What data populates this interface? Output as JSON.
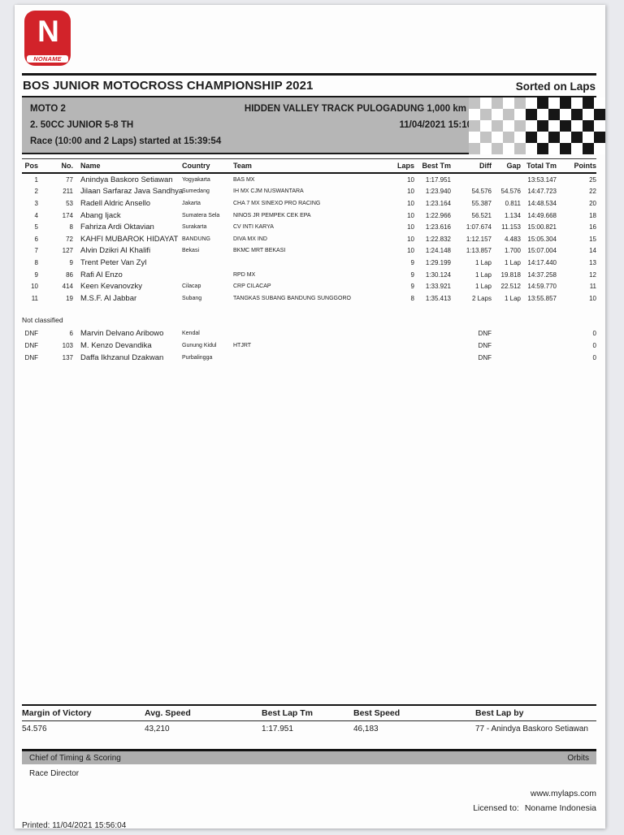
{
  "page": {
    "logo": {
      "letter": "N",
      "brand": "NONAME",
      "red": "#d2232a"
    },
    "header": {
      "title": "BOS JUNIOR MOTOCROSS CHAMPIONSHIP 2021",
      "sorted_on": "Sorted on Laps"
    },
    "event": {
      "moto": "MOTO 2",
      "track": "HIDDEN VALLEY TRACK PULOGADUNG 1,000 km",
      "class": "2. 50CC JUNIOR 5-8 TH",
      "datetime": "11/04/2021 15:10",
      "race_info": "Race (10:00 and 2 Laps) started at 15:39:54"
    },
    "flag": {
      "rows": 5,
      "cols": 12,
      "gray_cols": 5,
      "gray": "#c3c3c3",
      "black": "#161616",
      "white": "#ffffff"
    },
    "results": {
      "columns": [
        "Pos",
        "No.",
        "Name",
        "Country",
        "Team",
        "Laps",
        "Best Tm",
        "Diff",
        "Gap",
        "Total Tm",
        "Points"
      ],
      "rows": [
        {
          "pos": "1",
          "no": "77",
          "name": "Anindya Baskoro Setiawan",
          "country": "Yogyakarta",
          "team": "BAS MX",
          "laps": "10",
          "best": "1:17.951",
          "diff": "",
          "gap": "",
          "total": "13:53.147",
          "points": "25"
        },
        {
          "pos": "2",
          "no": "211",
          "name": "Jilaan Sarfaraz Java Sandhya",
          "country": "Sumedang",
          "team": "IH MX CJM NUSWANTARA",
          "laps": "10",
          "best": "1:23.940",
          "diff": "54.576",
          "gap": "54.576",
          "total": "14:47.723",
          "points": "22"
        },
        {
          "pos": "3",
          "no": "53",
          "name": "Radell Aldric Ansello",
          "country": "Jakarta",
          "team": "CHA 7 MX SINEXO PRO RACING",
          "laps": "10",
          "best": "1:23.164",
          "diff": "55.387",
          "gap": "0.811",
          "total": "14:48.534",
          "points": "20"
        },
        {
          "pos": "4",
          "no": "174",
          "name": "Abang Ijack",
          "country": "Sumatera Sela",
          "team": "NINOS JR PEMPEK CEK EPA",
          "laps": "10",
          "best": "1:22.966",
          "diff": "56.521",
          "gap": "1.134",
          "total": "14:49.668",
          "points": "18"
        },
        {
          "pos": "5",
          "no": "8",
          "name": "Fahriza Ardi Oktavian",
          "country": "Surakarta",
          "team": "CV INTI KARYA",
          "laps": "10",
          "best": "1:23.616",
          "diff": "1:07.674",
          "gap": "11.153",
          "total": "15:00.821",
          "points": "16"
        },
        {
          "pos": "6",
          "no": "72",
          "name": "KAHFI MUBAROK HIDAYAT",
          "country": "BANDUNG",
          "team": "DIVA MX IND",
          "laps": "10",
          "best": "1:22.832",
          "diff": "1:12.157",
          "gap": "4.483",
          "total": "15:05.304",
          "points": "15"
        },
        {
          "pos": "7",
          "no": "127",
          "name": "Alvin Dzikri Al Khalifi",
          "country": "Bekasi",
          "team": "BKMC MRT BEKASI",
          "laps": "10",
          "best": "1:24.148",
          "diff": "1:13.857",
          "gap": "1.700",
          "total": "15:07.004",
          "points": "14"
        },
        {
          "pos": "8",
          "no": "9",
          "name": "Trent Peter Van Zyl",
          "country": "",
          "team": "",
          "laps": "9",
          "best": "1:29.199",
          "diff": "1 Lap",
          "gap": "1 Lap",
          "total": "14:17.440",
          "points": "13"
        },
        {
          "pos": "9",
          "no": "86",
          "name": "Rafi Al Enzo",
          "country": "",
          "team": "RPD MX",
          "laps": "9",
          "best": "1:30.124",
          "diff": "1 Lap",
          "gap": "19.818",
          "total": "14:37.258",
          "points": "12"
        },
        {
          "pos": "10",
          "no": "414",
          "name": "Keen Kevanovzky",
          "country": "Cilacap",
          "team": "CRP CILACAP",
          "laps": "9",
          "best": "1:33.921",
          "diff": "1 Lap",
          "gap": "22.512",
          "total": "14:59.770",
          "points": "11"
        },
        {
          "pos": "11",
          "no": "19",
          "name": "M.S.F. Al Jabbar",
          "country": "Subang",
          "team": "TANGKAS SUBANG BANDUNG SUNGGORO",
          "laps": "8",
          "best": "1:35.413",
          "diff": "2 Laps",
          "gap": "1 Lap",
          "total": "13:55.857",
          "points": "10"
        }
      ],
      "not_classified_label": "Not classified",
      "not_classified": [
        {
          "pos": "DNF",
          "no": "6",
          "name": "Marvin Delvano Aribowo",
          "country": "Kendal",
          "team": "",
          "laps": "",
          "best": "",
          "diff": "DNF",
          "gap": "",
          "total": "",
          "points": "0"
        },
        {
          "pos": "DNF",
          "no": "103",
          "name": "M. Kenzo Devandika",
          "country": "Gunung Kidul",
          "team": "HTJRT",
          "laps": "",
          "best": "",
          "diff": "DNF",
          "gap": "",
          "total": "",
          "points": "0"
        },
        {
          "pos": "DNF",
          "no": "137",
          "name": "Daffa Ikhzanul Dzakwan",
          "country": "Purbalingga",
          "team": "",
          "laps": "",
          "best": "",
          "diff": "DNF",
          "gap": "",
          "total": "",
          "points": "0"
        }
      ]
    },
    "stats": {
      "headers": [
        "Margin of Victory",
        "Avg. Speed",
        "Best Lap Tm",
        "Best Speed",
        "Best Lap by"
      ],
      "values": [
        "54.576",
        "43,210",
        "1:17.951",
        "46,183",
        "77 - Anindya Baskoro Setiawan"
      ]
    },
    "footer": {
      "timing_official": "Chief of Timing & Scoring",
      "software": "Orbits",
      "race_official": "Race Director",
      "website": "www.mylaps.com",
      "licensed_label": "Licensed to:",
      "licensed_to": "Noname Indonesia",
      "printed": "Printed: 11/04/2021 15:56:04"
    }
  }
}
